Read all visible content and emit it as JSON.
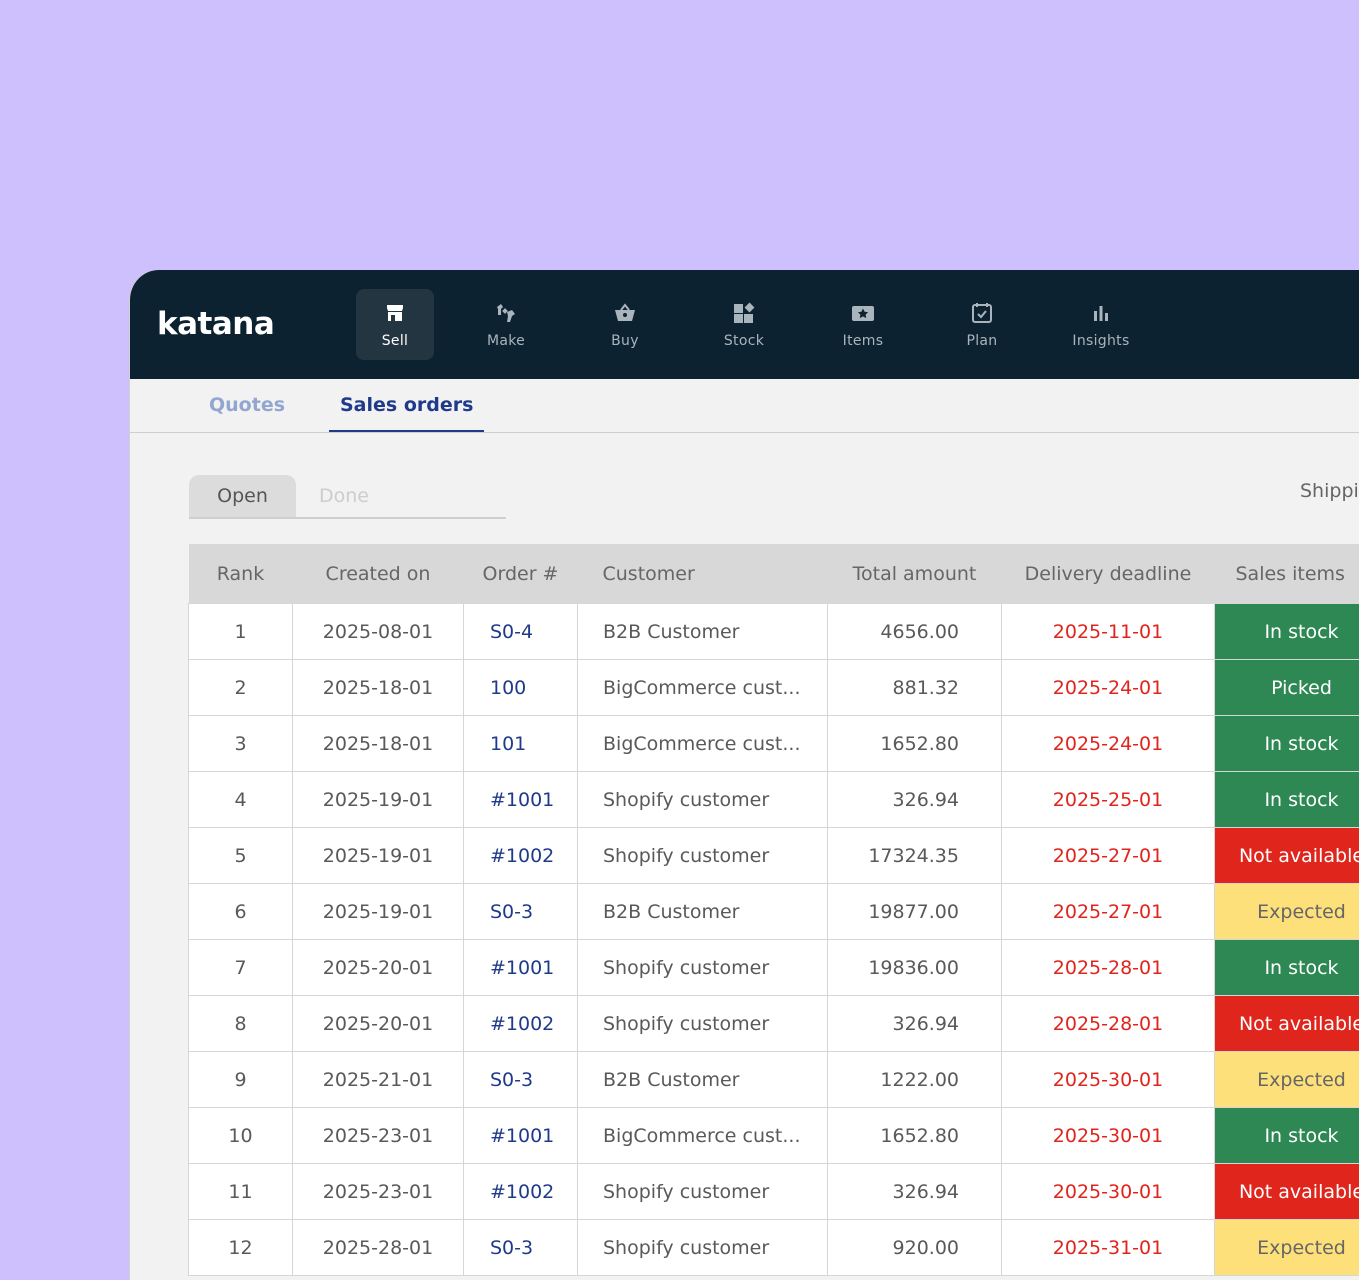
{
  "app": {
    "logo": "katana",
    "nav": [
      {
        "label": "Sell",
        "icon": "storefront-icon",
        "active": true
      },
      {
        "label": "Make",
        "icon": "wrench-icon",
        "active": false
      },
      {
        "label": "Buy",
        "icon": "basket-icon",
        "active": false
      },
      {
        "label": "Stock",
        "icon": "stock-blocks-icon",
        "active": false
      },
      {
        "label": "Items",
        "icon": "items-star-icon",
        "active": false
      },
      {
        "label": "Plan",
        "icon": "calendar-check-icon",
        "active": false
      },
      {
        "label": "Insights",
        "icon": "bar-chart-icon",
        "active": false
      }
    ]
  },
  "tabs": {
    "quotes": "Quotes",
    "sales_orders": "Sales orders",
    "active": "Sales orders"
  },
  "filter": {
    "open": "Open",
    "done": "Done",
    "selected": "Open"
  },
  "toolbar": {
    "shipping": "Shipping"
  },
  "table": {
    "headers": {
      "rank": "Rank",
      "created": "Created on",
      "order": "Order #",
      "customer": "Customer",
      "total": "Total amount",
      "deadline": "Delivery deadline",
      "sales_items": "Sales items"
    },
    "rows": [
      {
        "rank": "1",
        "created": "2025-08-01",
        "order": "S0-4",
        "customer": "B2B Customer",
        "total": "4656.00",
        "deadline": "2025-11-01",
        "status": "In stock",
        "status_color": "green"
      },
      {
        "rank": "2",
        "created": "2025-18-01",
        "order": "100",
        "customer": "BigCommerce cust...",
        "total": "881.32",
        "deadline": "2025-24-01",
        "status": "Picked",
        "status_color": "green"
      },
      {
        "rank": "3",
        "created": "2025-18-01",
        "order": "101",
        "customer": "BigCommerce cust...",
        "total": "1652.80",
        "deadline": "2025-24-01",
        "status": "In stock",
        "status_color": "green"
      },
      {
        "rank": "4",
        "created": "2025-19-01",
        "order": "#1001",
        "customer": "Shopify customer",
        "total": "326.94",
        "deadline": "2025-25-01",
        "status": "In stock",
        "status_color": "green"
      },
      {
        "rank": "5",
        "created": "2025-19-01",
        "order": "#1002",
        "customer": "Shopify customer",
        "total": "17324.35",
        "deadline": "2025-27-01",
        "status": "Not available",
        "status_color": "red"
      },
      {
        "rank": "6",
        "created": "2025-19-01",
        "order": "S0-3",
        "customer": "B2B Customer",
        "total": "19877.00",
        "deadline": "2025-27-01",
        "status": "Expected",
        "status_color": "yellow"
      },
      {
        "rank": "7",
        "created": "2025-20-01",
        "order": "#1001",
        "customer": "Shopify customer",
        "total": "19836.00",
        "deadline": "2025-28-01",
        "status": "In stock",
        "status_color": "green"
      },
      {
        "rank": "8",
        "created": "2025-20-01",
        "order": "#1002",
        "customer": "Shopify customer",
        "total": "326.94",
        "deadline": "2025-28-01",
        "status": "Not available",
        "status_color": "red"
      },
      {
        "rank": "9",
        "created": "2025-21-01",
        "order": "S0-3",
        "customer": "B2B Customer",
        "total": "1222.00",
        "deadline": "2025-30-01",
        "status": "Expected",
        "status_color": "yellow"
      },
      {
        "rank": "10",
        "created": "2025-23-01",
        "order": "#1001",
        "customer": "BigCommerce cust...",
        "total": "1652.80",
        "deadline": "2025-30-01",
        "status": "In stock",
        "status_color": "green"
      },
      {
        "rank": "11",
        "created": "2025-23-01",
        "order": "#1002",
        "customer": "Shopify customer",
        "total": "326.94",
        "deadline": "2025-30-01",
        "status": "Not available",
        "status_color": "red"
      },
      {
        "rank": "12",
        "created": "2025-28-01",
        "order": "S0-3",
        "customer": "Shopify customer",
        "total": "920.00",
        "deadline": "2025-31-01",
        "status": "Expected",
        "status_color": "yellow"
      }
    ]
  }
}
